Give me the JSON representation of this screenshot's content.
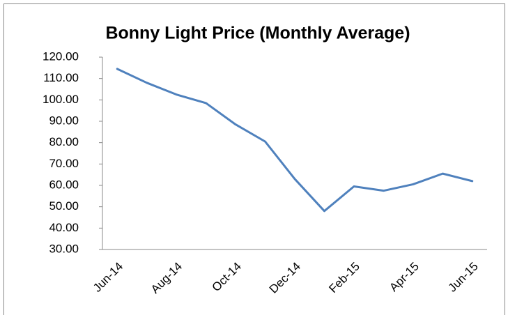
{
  "chart_data": {
    "type": "line",
    "title": "Bonny Light Price (Monthly Average)",
    "categories": [
      "Jun-14",
      null,
      "Aug-14",
      null,
      "Oct-14",
      null,
      "Dec-14",
      null,
      "Feb-15",
      null,
      "Apr-15",
      null,
      "Jun-15"
    ],
    "series": [
      {
        "name": "Bonny Light",
        "color": "#4f81bd",
        "values": [
          114.5,
          108,
          102.5,
          98.5,
          88.5,
          80.5,
          63,
          48,
          59.5,
          57.5,
          60.5,
          65.5,
          62
        ]
      }
    ],
    "ylim": [
      30,
      120
    ],
    "yticks": [
      {
        "value": 30,
        "label": "30.00"
      },
      {
        "value": 40,
        "label": "40.00"
      },
      {
        "value": 50,
        "label": "50.00"
      },
      {
        "value": 60,
        "label": "60.00"
      },
      {
        "value": 70,
        "label": "70.00"
      },
      {
        "value": 80,
        "label": "80.00"
      },
      {
        "value": 90,
        "label": "90.00"
      },
      {
        "value": 100,
        "label": "100.00"
      },
      {
        "value": 110,
        "label": "110.00"
      },
      {
        "value": 120,
        "label": "120.00"
      }
    ],
    "grid": false
  }
}
